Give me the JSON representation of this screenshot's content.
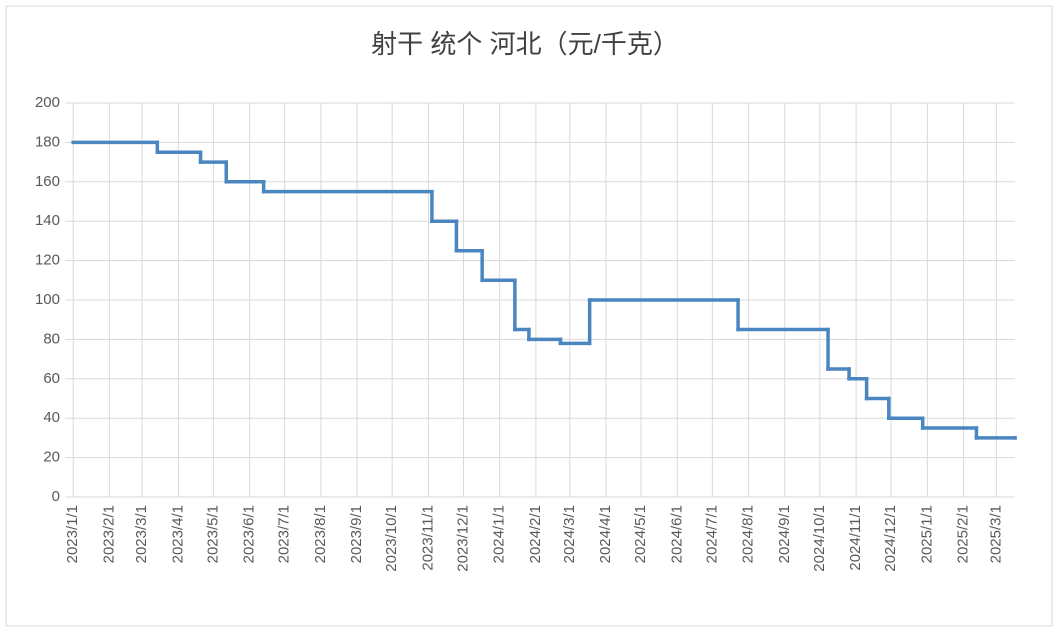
{
  "chart_data": {
    "type": "step-line",
    "title": "射干 统个 河北（元/千克）",
    "x": [
      "2023/1/1",
      "2023/3/14",
      "2023/4/20",
      "2023/5/12",
      "2023/6/13",
      "2023/11/4",
      "2023/11/25",
      "2023/12/17",
      "2024/1/14",
      "2024/1/26",
      "2024/2/22",
      "2024/3/18",
      "2024/7/23",
      "2024/10/8",
      "2024/10/26",
      "2024/11/10",
      "2024/11/29",
      "2024/12/28",
      "2025/2/12",
      "2025/3/17"
    ],
    "series": [
      {
        "color": "#4a86c0",
        "values": [
          180,
          175,
          170,
          160,
          155,
          140,
          125,
          110,
          85,
          80,
          78,
          100,
          85,
          65,
          60,
          50,
          40,
          35,
          30,
          30
        ]
      }
    ],
    "xlim": [
      "2022/12/25",
      "2025/3/17"
    ],
    "xticks": [
      "2023/1/1",
      "2023/2/1",
      "2023/3/1",
      "2023/4/1",
      "2023/5/1",
      "2023/6/1",
      "2023/7/1",
      "2023/8/1",
      "2023/9/1",
      "2023/10/1",
      "2023/11/1",
      "2023/12/1",
      "2024/1/1",
      "2024/2/1",
      "2024/3/1",
      "2024/4/1",
      "2024/5/1",
      "2024/6/1",
      "2024/7/1",
      "2024/8/1",
      "2024/9/1",
      "2024/10/1",
      "2024/11/1",
      "2024/12/1",
      "2025/1/1",
      "2025/2/1",
      "2025/3/1"
    ],
    "ylim": [
      0,
      200
    ],
    "yticks": [
      0,
      20,
      40,
      60,
      80,
      100,
      120,
      140,
      160,
      180,
      200
    ],
    "grid": true
  }
}
